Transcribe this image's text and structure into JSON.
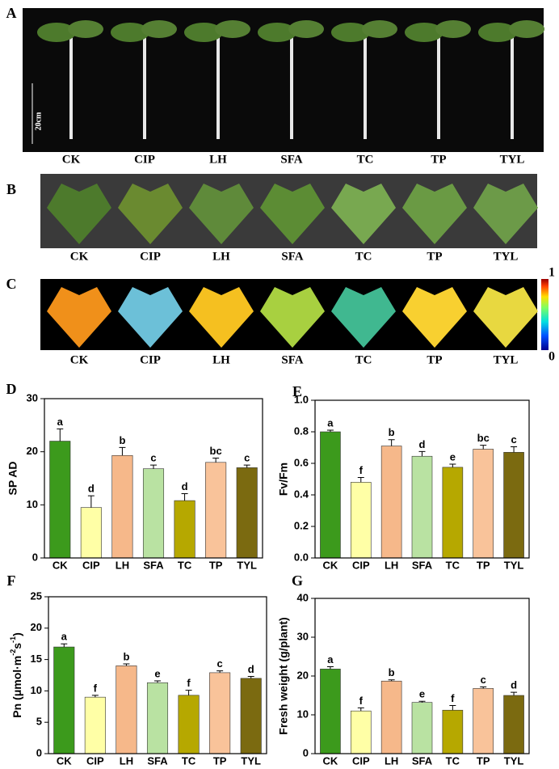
{
  "photo_panels": [
    {
      "letter": "A",
      "scale_label": "20cm",
      "labels": [
        "CK",
        "CIP",
        "LH",
        "SFA",
        "TC",
        "TP",
        "TYL"
      ]
    },
    {
      "letter": "B",
      "labels": [
        "CK",
        "CIP",
        "LH",
        "SFA",
        "TC",
        "TP",
        "TYL"
      ]
    },
    {
      "letter": "C",
      "labels": [
        "CK",
        "CIP",
        "LH",
        "SFA",
        "TC",
        "TP",
        "TYL"
      ],
      "colorbar": {
        "max": "1",
        "min": "0"
      }
    }
  ],
  "chart_data": [
    {
      "type": "bar",
      "panel_label": "D",
      "ylabel": "SP AD",
      "categories": [
        "CK",
        "CIP",
        "LH",
        "SFA",
        "TC",
        "TP",
        "TYL"
      ],
      "values": [
        22,
        9.5,
        19.3,
        16.8,
        10.8,
        18,
        17
      ],
      "errors": [
        2.3,
        2.2,
        1.5,
        0.7,
        1.3,
        0.8,
        0.5
      ],
      "significance": [
        "a",
        "d",
        "b",
        "c",
        "d",
        "bc",
        "c"
      ],
      "colors": [
        "#3c9a1c",
        "#ffffa6",
        "#f6b88a",
        "#b9e2a2",
        "#b6a800",
        "#f9c39a",
        "#7b6a10"
      ],
      "ylim": [
        0,
        30
      ],
      "yticks": [
        0,
        10,
        20,
        30
      ]
    },
    {
      "type": "bar",
      "panel_label": "E",
      "ylabel": "Fv/Fm",
      "categories": [
        "CK",
        "CIP",
        "LH",
        "SFA",
        "TC",
        "TP",
        "TYL"
      ],
      "values": [
        0.8,
        0.48,
        0.71,
        0.645,
        0.575,
        0.69,
        0.67
      ],
      "errors": [
        0.01,
        0.03,
        0.04,
        0.03,
        0.02,
        0.025,
        0.035
      ],
      "significance": [
        "a",
        "f",
        "b",
        "d",
        "e",
        "bc",
        "c"
      ],
      "colors": [
        "#3c9a1c",
        "#ffffa6",
        "#f6b88a",
        "#b9e2a2",
        "#b6a800",
        "#f9c39a",
        "#7b6a10"
      ],
      "ylim": [
        0,
        1.0
      ],
      "yticks": [
        {
          "value": 0,
          "label": "0.0"
        },
        0.2,
        0.4,
        0.6,
        0.8,
        {
          "value": 1.0,
          "label": "1.0"
        }
      ]
    },
    {
      "type": "bar",
      "panel_label": "F",
      "ylabel_parts": [
        "Pn  (μmol·m",
        "-2",
        "s",
        "-1",
        ")"
      ],
      "categories": [
        "CK",
        "CIP",
        "LH",
        "SFA",
        "TC",
        "TP",
        "TYL"
      ],
      "values": [
        17,
        9,
        14,
        11.3,
        9.3,
        12.9,
        12
      ],
      "errors": [
        0.5,
        0.3,
        0.3,
        0.3,
        0.8,
        0.3,
        0.3
      ],
      "significance": [
        "a",
        "f",
        "b",
        "e",
        "f",
        "c",
        "d"
      ],
      "colors": [
        "#3c9a1c",
        "#ffffa6",
        "#f6b88a",
        "#b9e2a2",
        "#b6a800",
        "#f9c39a",
        "#7b6a10"
      ],
      "ylim": [
        0,
        25
      ],
      "yticks": [
        0,
        5,
        10,
        15,
        20,
        25
      ]
    },
    {
      "type": "bar",
      "panel_label": "G",
      "ylabel": "Fresh weight (g/plant)",
      "categories": [
        "CK",
        "CIP",
        "LH",
        "SFA",
        "TC",
        "TP",
        "TYL"
      ],
      "values": [
        21.8,
        11,
        18.7,
        13.2,
        11.2,
        16.8,
        15
      ],
      "errors": [
        0.6,
        0.8,
        0.3,
        0.3,
        1.2,
        0.4,
        0.8
      ],
      "significance": [
        "a",
        "f",
        "b",
        "e",
        "f",
        "c",
        "d"
      ],
      "colors": [
        "#3c9a1c",
        "#ffffa6",
        "#f6b88a",
        "#b9e2a2",
        "#b6a800",
        "#f9c39a",
        "#7b6a10"
      ],
      "ylim": [
        0,
        40
      ],
      "yticks": [
        0,
        10,
        20,
        30,
        40
      ]
    }
  ]
}
